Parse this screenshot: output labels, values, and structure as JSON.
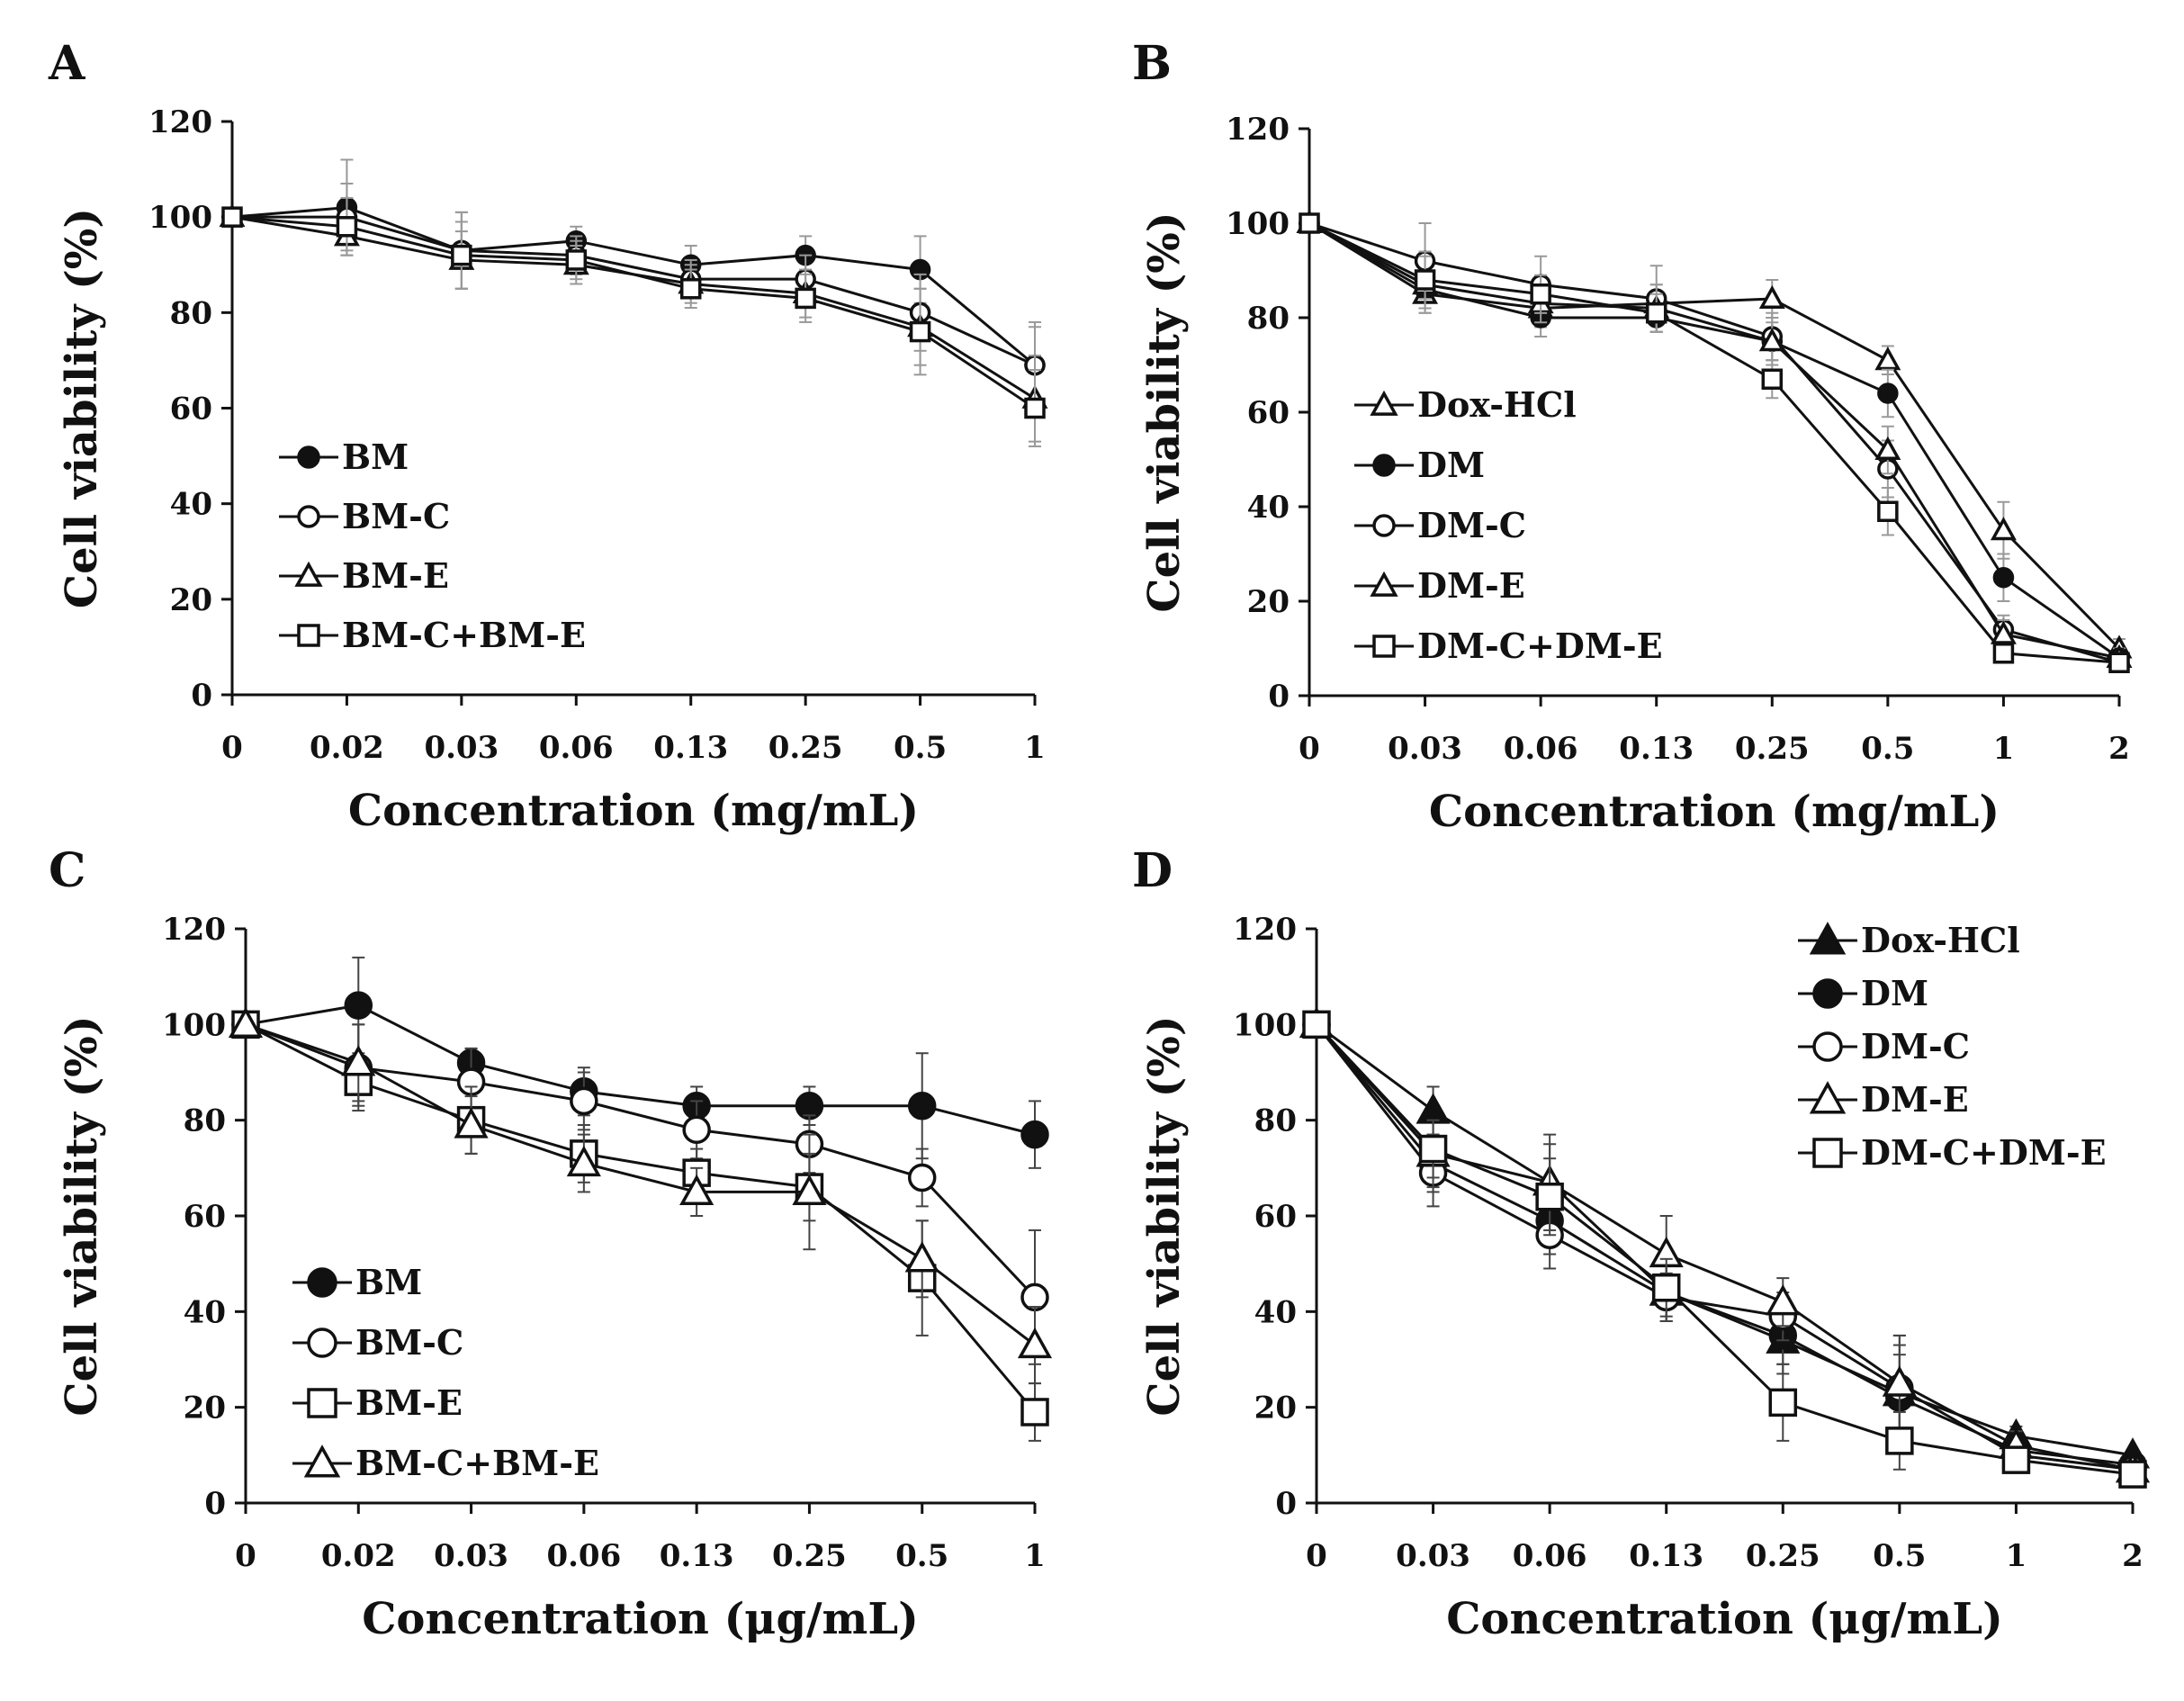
{
  "chart_data": [
    {
      "panel": "A",
      "type": "line",
      "xlabel": "Concentration (mg/mL)",
      "ylabel": "Cell viability (%)",
      "ylim": [
        0,
        120
      ],
      "yticks": [
        "0",
        "20",
        "40",
        "60",
        "80",
        "100",
        "120"
      ],
      "categories": [
        "0",
        "0.02",
        "0.03",
        "0.06",
        "0.13",
        "0.25",
        "0.5",
        "1"
      ],
      "legend_position": "bottom-left",
      "series": [
        {
          "name": "BM",
          "marker": "circle-filled",
          "values": [
            100,
            102,
            93,
            95,
            90,
            92,
            89,
            69
          ],
          "errors": [
            0,
            10,
            8,
            3,
            4,
            4,
            7,
            9
          ]
        },
        {
          "name": "BM-C",
          "marker": "circle-open",
          "values": [
            100,
            100,
            93,
            92,
            87,
            87,
            80,
            69
          ],
          "errors": [
            0,
            7,
            8,
            4,
            4,
            5,
            8,
            8
          ]
        },
        {
          "name": "BM-E",
          "marker": "triangle-open",
          "values": [
            100,
            96,
            91,
            90,
            86,
            84,
            77,
            62
          ],
          "errors": [
            0,
            4,
            6,
            4,
            4,
            5,
            8,
            9
          ]
        },
        {
          "name": "BM-C+BM-E",
          "marker": "square-open",
          "values": [
            100,
            98,
            92,
            91,
            85,
            83,
            76,
            60
          ],
          "errors": [
            0,
            6,
            7,
            4,
            4,
            5,
            9,
            8
          ]
        }
      ]
    },
    {
      "panel": "B",
      "type": "line",
      "xlabel": "Concentration (mg/mL)",
      "ylabel": "Cell viability (%)",
      "ylim": [
        0,
        120
      ],
      "yticks": [
        "0",
        "20",
        "40",
        "60",
        "80",
        "100",
        "120"
      ],
      "categories": [
        "0",
        "0.03",
        "0.06",
        "0.13",
        "0.25",
        "0.5",
        "1",
        "2"
      ],
      "legend_position": "bottom-left",
      "series": [
        {
          "name": "Dox-HCl",
          "marker": "triangle-open",
          "values": [
            100,
            85,
            82,
            83,
            84,
            71,
            35,
            10
          ],
          "errors": [
            0,
            4,
            4,
            4,
            4,
            3,
            6,
            2
          ]
        },
        {
          "name": "DM",
          "marker": "circle-filled",
          "values": [
            100,
            86,
            80,
            80,
            75,
            64,
            25,
            8
          ],
          "errors": [
            0,
            4,
            4,
            3,
            4,
            5,
            5,
            2
          ]
        },
        {
          "name": "DM-C",
          "marker": "circle-open",
          "values": [
            100,
            92,
            87,
            84,
            76,
            48,
            14,
            7
          ],
          "errors": [
            0,
            8,
            6,
            7,
            5,
            6,
            3,
            1
          ]
        },
        {
          "name": "DM-E",
          "marker": "triangle-open",
          "values": [
            100,
            87,
            83,
            82,
            75,
            52,
            13,
            8
          ],
          "errors": [
            0,
            6,
            4,
            5,
            5,
            5,
            3,
            1
          ]
        },
        {
          "name": "DM-C+DM-E",
          "marker": "square-open",
          "values": [
            100,
            88,
            85,
            81,
            67,
            39,
            9,
            7
          ],
          "errors": [
            0,
            6,
            4,
            4,
            4,
            5,
            2,
            1
          ]
        }
      ]
    },
    {
      "panel": "C",
      "type": "line",
      "xlabel": "Concentration (μg/mL)",
      "ylabel": "Cell viability (%)",
      "ylim": [
        0,
        120
      ],
      "yticks": [
        "0",
        "20",
        "40",
        "60",
        "80",
        "100",
        "120"
      ],
      "categories": [
        "0",
        "0.02",
        "0.03",
        "0.06",
        "0.13",
        "0.25",
        "0.5",
        "1"
      ],
      "legend_position": "bottom-left",
      "series": [
        {
          "name": "BM",
          "marker": "circle-filled",
          "values": [
            100,
            104,
            92,
            86,
            83,
            83,
            83,
            77
          ],
          "errors": [
            0,
            10,
            3,
            5,
            4,
            4,
            11,
            7
          ]
        },
        {
          "name": "BM-C",
          "marker": "circle-open",
          "values": [
            100,
            91,
            88,
            84,
            78,
            75,
            68,
            43
          ],
          "errors": [
            0,
            9,
            7,
            6,
            6,
            6,
            6,
            14
          ]
        },
        {
          "name": "BM-E",
          "marker": "square-open",
          "values": [
            100,
            88,
            80,
            73,
            69,
            66,
            47,
            19
          ],
          "errors": [
            0,
            5,
            7,
            6,
            5,
            7,
            12,
            6
          ]
        },
        {
          "name": "BM-C+BM-E",
          "marker": "triangle-open",
          "values": [
            100,
            92,
            79,
            71,
            65,
            65,
            51,
            33
          ],
          "errors": [
            0,
            8,
            6,
            6,
            5,
            12,
            8,
            8
          ]
        }
      ]
    },
    {
      "panel": "D",
      "type": "line",
      "xlabel": "Concentration (μg/mL)",
      "ylabel": "Cell viability (%)",
      "ylim": [
        0,
        120
      ],
      "yticks": [
        "0",
        "20",
        "40",
        "60",
        "80",
        "100",
        "120"
      ],
      "categories": [
        "0",
        "0.03",
        "0.06",
        "0.13",
        "0.25",
        "0.5",
        "1",
        "2"
      ],
      "legend_position": "top-right",
      "series": [
        {
          "name": "Dox-HCl",
          "marker": "triangle-filled",
          "values": [
            100,
            82,
            67,
            44,
            34,
            23,
            14,
            10
          ],
          "errors": [
            0,
            5,
            8,
            6,
            7,
            10,
            2,
            1
          ]
        },
        {
          "name": "DM",
          "marker": "circle-filled",
          "values": [
            100,
            71,
            59,
            44,
            35,
            22,
            11,
            8
          ],
          "errors": [
            0,
            6,
            7,
            6,
            6,
            9,
            2,
            1
          ]
        },
        {
          "name": "DM-C",
          "marker": "circle-open",
          "values": [
            100,
            69,
            56,
            43,
            39,
            24,
            10,
            7
          ],
          "errors": [
            0,
            7,
            7,
            5,
            5,
            11,
            2,
            1
          ]
        },
        {
          "name": "DM-E",
          "marker": "triangle-open",
          "values": [
            100,
            73,
            67,
            52,
            42,
            25,
            12,
            7
          ],
          "errors": [
            0,
            7,
            10,
            8,
            5,
            10,
            3,
            1
          ]
        },
        {
          "name": "DM-C+DM-E",
          "marker": "square-open",
          "values": [
            100,
            74,
            64,
            45,
            21,
            13,
            9,
            6
          ],
          "errors": [
            0,
            6,
            8,
            6,
            8,
            6,
            2,
            1
          ]
        }
      ]
    }
  ]
}
